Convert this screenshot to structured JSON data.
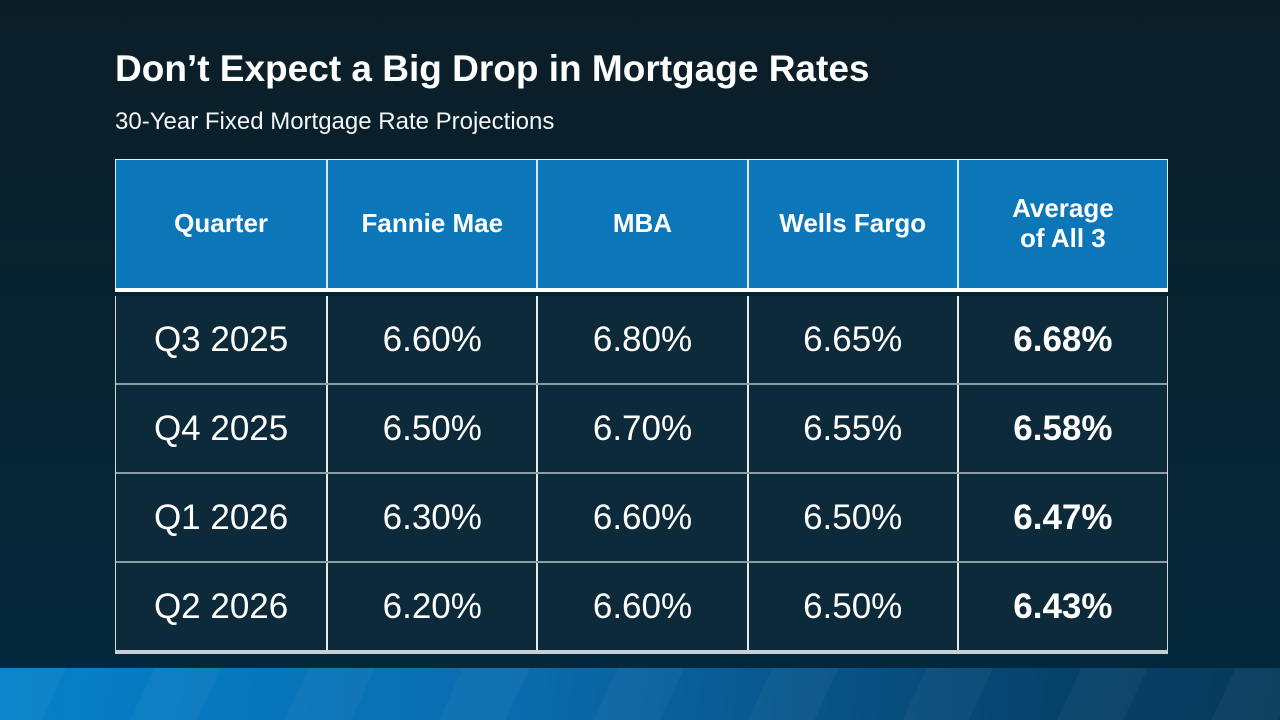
{
  "slide": {
    "title": "Don’t Expect a Big Drop in Mortgage Rates",
    "subtitle": "30-Year Fixed Mortgage Rate Projections"
  },
  "chart_data": {
    "type": "table",
    "title": "30-Year Fixed Mortgage Rate Projections",
    "columns": [
      "Quarter",
      "Fannie Mae",
      "MBA",
      "Wells Fargo",
      "Average\nof All 3"
    ],
    "rows": [
      [
        "Q3 2025",
        "6.60%",
        "6.80%",
        "6.65%",
        "6.68%"
      ],
      [
        "Q4 2025",
        "6.50%",
        "6.70%",
        "6.55%",
        "6.58%"
      ],
      [
        "Q1 2026",
        "6.30%",
        "6.60%",
        "6.50%",
        "6.47%"
      ],
      [
        "Q2 2026",
        "6.20%",
        "6.60%",
        "6.50%",
        "6.43%"
      ]
    ]
  },
  "colors": {
    "header_blue": "#0b76b8",
    "row_navy": "#0d2a3b",
    "background_top": "#0b1e28",
    "background_bottom": "#04293d",
    "accent_bar_left": "#0681c9",
    "accent_bar_right": "#083a5a",
    "text": "#ffffff"
  }
}
